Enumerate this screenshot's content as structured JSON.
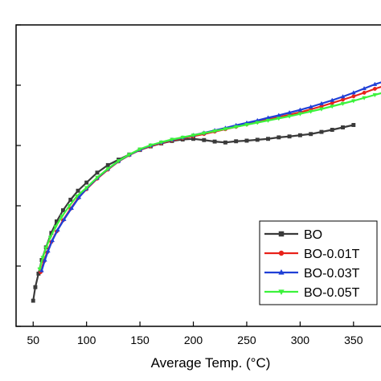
{
  "chart_data": {
    "type": "line",
    "title": "",
    "xlabel": "Average Temp. (°C)",
    "ylabel": "",
    "xlim": [
      34,
      381
    ],
    "ylim": [
      0.0,
      1.0
    ],
    "x_ticks": [
      "50",
      "100",
      "150",
      "200",
      "250",
      "300",
      "350"
    ],
    "x_tick_values": [
      50,
      100,
      150,
      200,
      250,
      300,
      350
    ],
    "y_tick_values": [
      0.0,
      0.2,
      0.4,
      0.6,
      0.8,
      1.0
    ],
    "grid": false,
    "legend_position": "bottom-right",
    "series": [
      {
        "name": "BO",
        "color": "#3a3a3a",
        "marker": "square",
        "x": [
          50,
          52,
          55,
          58,
          62,
          67,
          72,
          78,
          85,
          92,
          100,
          110,
          120,
          130,
          140,
          150,
          160,
          170,
          180,
          190,
          200,
          210,
          220,
          230,
          240,
          250,
          260,
          270,
          280,
          290,
          300,
          310,
          320,
          330,
          340,
          350
        ],
        "y": [
          0.085,
          0.13,
          0.175,
          0.22,
          0.262,
          0.31,
          0.348,
          0.385,
          0.42,
          0.45,
          0.477,
          0.51,
          0.535,
          0.553,
          0.57,
          0.585,
          0.597,
          0.607,
          0.615,
          0.62,
          0.622,
          0.618,
          0.613,
          0.61,
          0.614,
          0.616,
          0.619,
          0.622,
          0.627,
          0.63,
          0.634,
          0.638,
          0.645,
          0.652,
          0.66,
          0.668
        ]
      },
      {
        "name": "BO-0.01T",
        "color": "#e8221a",
        "marker": "circle",
        "x": [
          57,
          60,
          63,
          67,
          72,
          78,
          85,
          92,
          100,
          110,
          120,
          130,
          140,
          150,
          160,
          170,
          180,
          190,
          200,
          210,
          220,
          230,
          240,
          250,
          260,
          270,
          280,
          290,
          300,
          310,
          320,
          330,
          340,
          350,
          360,
          370,
          381
        ],
        "y": [
          0.18,
          0.215,
          0.245,
          0.28,
          0.315,
          0.352,
          0.39,
          0.425,
          0.455,
          0.49,
          0.52,
          0.547,
          0.568,
          0.585,
          0.598,
          0.608,
          0.617,
          0.624,
          0.631,
          0.638,
          0.646,
          0.654,
          0.662,
          0.67,
          0.678,
          0.686,
          0.694,
          0.702,
          0.71,
          0.72,
          0.73,
          0.741,
          0.752,
          0.763,
          0.775,
          0.788,
          0.8
        ]
      },
      {
        "name": "BO-0.03T",
        "color": "#1f3fd6",
        "marker": "triangle",
        "x": [
          58,
          61,
          64,
          68,
          73,
          79,
          86,
          93,
          100,
          110,
          120,
          130,
          140,
          150,
          160,
          170,
          180,
          190,
          200,
          210,
          220,
          230,
          240,
          250,
          260,
          270,
          280,
          290,
          300,
          310,
          320,
          330,
          340,
          350,
          360,
          370,
          381
        ],
        "y": [
          0.185,
          0.22,
          0.25,
          0.285,
          0.32,
          0.355,
          0.392,
          0.428,
          0.457,
          0.492,
          0.522,
          0.548,
          0.569,
          0.586,
          0.6,
          0.61,
          0.619,
          0.626,
          0.634,
          0.642,
          0.65,
          0.658,
          0.667,
          0.675,
          0.683,
          0.692,
          0.7,
          0.709,
          0.718,
          0.728,
          0.739,
          0.75,
          0.762,
          0.775,
          0.789,
          0.803,
          0.815
        ]
      },
      {
        "name": "BO-0.05T",
        "color": "#3cf23c",
        "marker": "down-triangle",
        "x": [
          56,
          59,
          62,
          66,
          71,
          77,
          84,
          91,
          100,
          110,
          120,
          130,
          140,
          150,
          160,
          170,
          180,
          190,
          200,
          210,
          220,
          230,
          240,
          250,
          260,
          270,
          280,
          290,
          300,
          310,
          320,
          330,
          340,
          350,
          360,
          370,
          381
        ],
        "y": [
          0.19,
          0.228,
          0.26,
          0.295,
          0.33,
          0.365,
          0.4,
          0.432,
          0.46,
          0.494,
          0.523,
          0.549,
          0.57,
          0.588,
          0.601,
          0.611,
          0.62,
          0.627,
          0.634,
          0.641,
          0.648,
          0.655,
          0.662,
          0.669,
          0.676,
          0.683,
          0.69,
          0.697,
          0.705,
          0.713,
          0.721,
          0.73,
          0.739,
          0.748,
          0.758,
          0.768,
          0.778
        ]
      }
    ]
  }
}
